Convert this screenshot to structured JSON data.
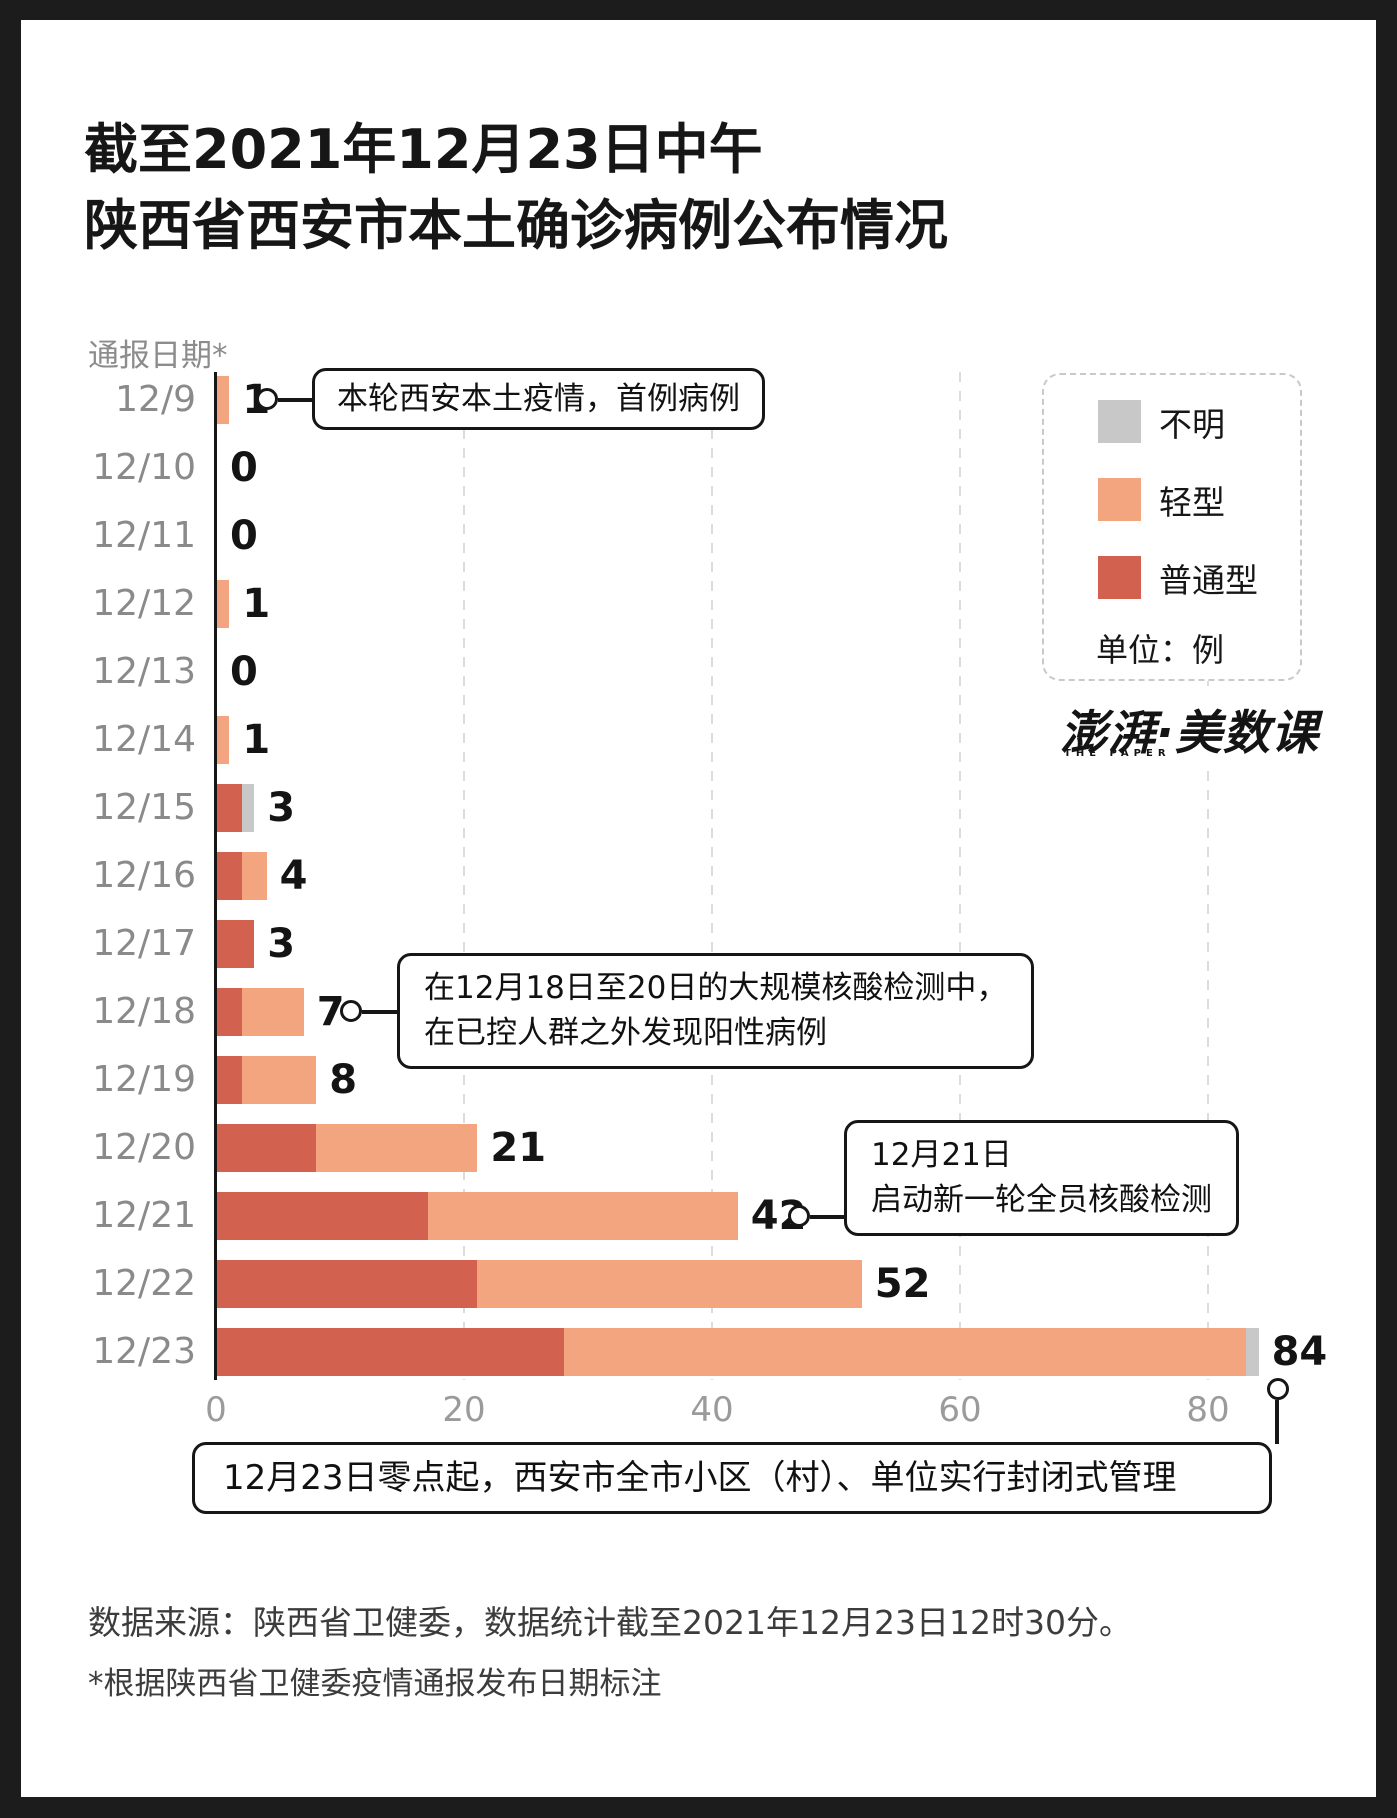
{
  "title": {
    "line1": "截至2021年12月23日中午",
    "line2": "陕西省西安市本土确诊病例公布情况"
  },
  "axis_title": "通报日期*",
  "legend": {
    "items": [
      {
        "label": "不明",
        "color": "#c8c8c8"
      },
      {
        "label": "轻型",
        "color": "#f3a57f"
      },
      {
        "label": "普通型",
        "color": "#d2614f"
      }
    ],
    "unit_label": "单位：例"
  },
  "logo": {
    "text": "澎湃·美数课",
    "subtext": "THE PAPER"
  },
  "chart_data": {
    "type": "bar",
    "orientation": "horizontal",
    "stacked": true,
    "title": "截至2021年12月23日中午 陕西省西安市本土确诊病例公布情况",
    "ylabel": "通报日期*",
    "unit": "例",
    "categories": [
      "12/9",
      "12/10",
      "12/11",
      "12/12",
      "12/13",
      "12/14",
      "12/15",
      "12/16",
      "12/17",
      "12/18",
      "12/19",
      "12/20",
      "12/21",
      "12/22",
      "12/23"
    ],
    "series": [
      {
        "name": "普通型",
        "color": "#d2614f",
        "values": [
          0,
          0,
          0,
          0,
          0,
          0,
          2,
          2,
          3,
          2,
          2,
          8,
          17,
          21,
          28
        ]
      },
      {
        "name": "轻型",
        "color": "#f3a57f",
        "values": [
          1,
          0,
          0,
          1,
          0,
          1,
          0,
          2,
          0,
          5,
          6,
          13,
          25,
          31,
          55
        ]
      },
      {
        "name": "不明",
        "color": "#c8c8c8",
        "values": [
          0,
          0,
          0,
          0,
          0,
          0,
          1,
          0,
          0,
          0,
          0,
          0,
          0,
          0,
          1
        ]
      }
    ],
    "totals": [
      1,
      0,
      0,
      1,
      0,
      1,
      3,
      4,
      3,
      7,
      8,
      21,
      42,
      52,
      84
    ],
    "x_ticks": [
      0,
      20,
      40,
      60,
      80
    ],
    "xlim": [
      0,
      95
    ],
    "grid": "dashed-vertical-at-ticks",
    "legend_position": "top-right"
  },
  "annotations": {
    "first_case": {
      "text": "本轮西安本土疫情，首例病例"
    },
    "mass_testing": {
      "line1": "在12月18日至20日的大规模核酸检测中，",
      "line2": "在已控人群之外发现阳性病例"
    },
    "new_round": {
      "line1": "12月21日",
      "line2": "启动新一轮全员核酸检测"
    },
    "lockdown": {
      "text": "12月23日零点起，西安市全市小区（村）、单位实行封闭式管理"
    }
  },
  "footer": {
    "source": "数据来源：陕西省卫健委，数据统计截至2021年12月23日12时30分。",
    "note": "*根据陕西省卫健委疫情通报发布日期标注"
  }
}
